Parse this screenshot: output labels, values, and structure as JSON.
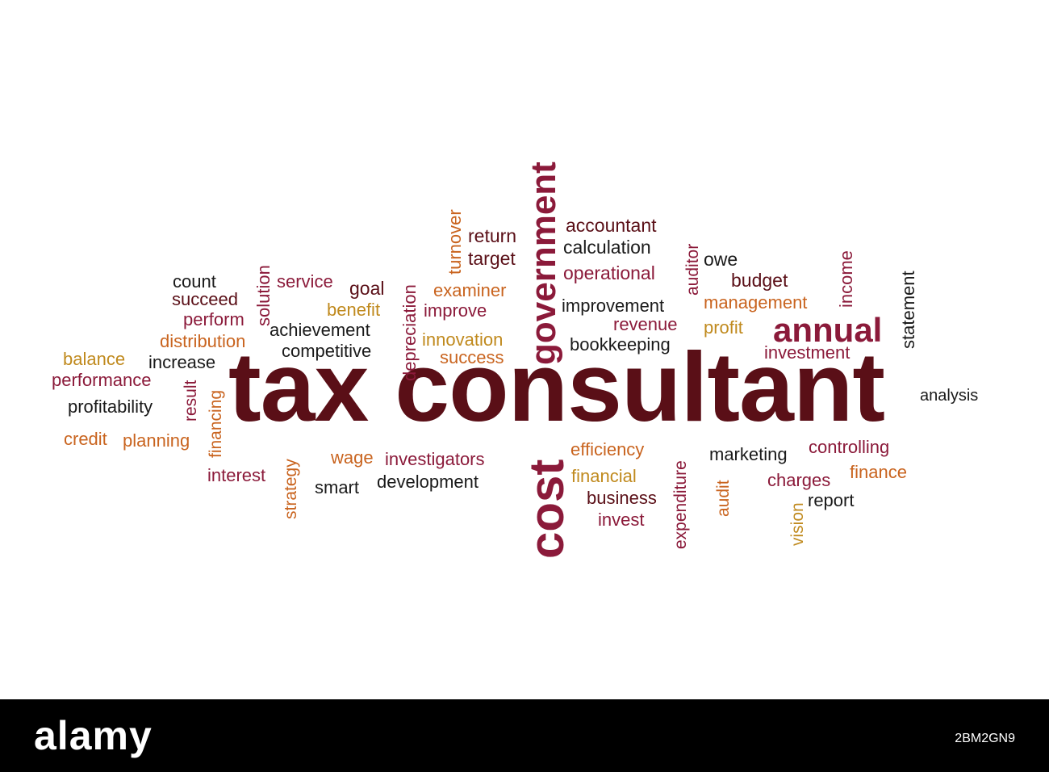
{
  "cloud": {
    "words": [
      "tax consultant",
      "cost",
      "government",
      "annual",
      "accountant",
      "calculation",
      "return",
      "target",
      "turnover",
      "operational",
      "auditor",
      "owe",
      "budget",
      "income",
      "statement",
      "count",
      "succeed",
      "perform",
      "solution",
      "service",
      "goal",
      "examiner",
      "depreciation",
      "improve",
      "benefit",
      "distribution",
      "achievement",
      "competitive",
      "innovation",
      "success",
      "improvement",
      "revenue",
      "management",
      "profit",
      "investment",
      "bookkeeping",
      "balance",
      "increase",
      "performance",
      "result",
      "profitability",
      "financing",
      "analysis",
      "credit",
      "planning",
      "strategy",
      "interest",
      "wage",
      "investigators",
      "smart",
      "development",
      "efficiency",
      "financial",
      "business",
      "invest",
      "expenditure",
      "marketing",
      "controlling",
      "charges",
      "finance",
      "audit",
      "vision",
      "report"
    ]
  },
  "branding": {
    "logo": "alamy",
    "image_id": "2BM2GN9"
  },
  "colors": {
    "dark": "#5a0f17",
    "crimson": "#8b1a3a",
    "orange": "#c9641f",
    "gold": "#c08a1e",
    "black": "#1a1a1a",
    "banner": "#000000"
  }
}
